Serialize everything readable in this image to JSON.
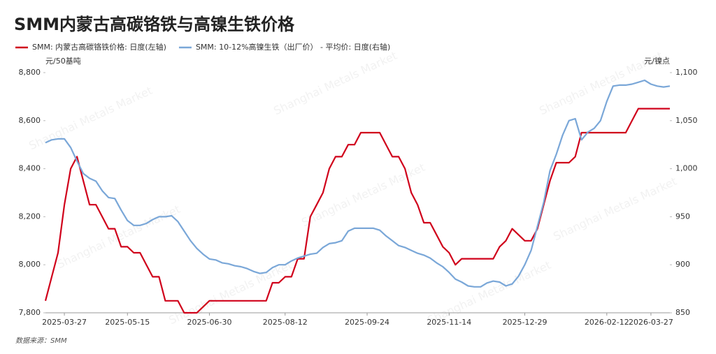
{
  "chart_data": {
    "type": "line",
    "title": "SMM内蒙古高碳铬铁与高镍生铁价格",
    "y_label": "元/50基吨",
    "y2_label": "元/镍点",
    "source": "数据来源：SMM",
    "watermark": "Shanghai Metals Market",
    "categories": [
      null,
      null,
      null,
      "2025-03-27",
      null,
      null,
      null,
      null,
      null,
      null,
      null,
      null,
      null,
      "2025-05-15",
      null,
      null,
      null,
      null,
      null,
      null,
      null,
      null,
      null,
      null,
      null,
      null,
      "2025-06-30",
      null,
      null,
      null,
      null,
      null,
      null,
      null,
      null,
      null,
      null,
      null,
      "2025-08-12",
      null,
      null,
      null,
      null,
      null,
      null,
      null,
      null,
      null,
      null,
      null,
      null,
      "2025-09-24",
      null,
      null,
      null,
      null,
      null,
      null,
      null,
      null,
      null,
      null,
      null,
      null,
      "2025-11-14",
      null,
      null,
      null,
      null,
      null,
      null,
      null,
      null,
      null,
      null,
      null,
      "2025-12-29",
      null,
      null,
      null,
      null,
      null,
      null,
      null,
      null,
      null,
      null,
      null,
      null,
      "2026-02-12",
      null,
      null,
      null,
      null,
      null,
      null,
      "2026-03-27",
      null,
      null,
      null
    ],
    "series": [
      {
        "name": "SMM: 内蒙古高碳铬铁价格: 日度(左轴)",
        "color": "#d0021b",
        "axis": "y",
        "values": [
          7850,
          7950,
          8050,
          8250,
          8400,
          8450,
          8350,
          8250,
          8250,
          8200,
          8150,
          8150,
          8075,
          8075,
          8050,
          8050,
          8000,
          7950,
          7950,
          7850,
          7850,
          7850,
          7800,
          7800,
          7800,
          7825,
          7850,
          7850,
          7850,
          7850,
          7850,
          7850,
          7850,
          7850,
          7850,
          7850,
          7925,
          7925,
          7950,
          7950,
          8025,
          8025,
          8200,
          8250,
          8300,
          8400,
          8450,
          8450,
          8500,
          8500,
          8550,
          8550,
          8550,
          8550,
          8500,
          8450,
          8450,
          8400,
          8300,
          8250,
          8175,
          8175,
          8125,
          8075,
          8050,
          8000,
          8025,
          8025,
          8025,
          8025,
          8025,
          8025,
          8075,
          8100,
          8150,
          8125,
          8100,
          8100,
          8150,
          8250,
          8350,
          8425,
          8425,
          8425,
          8450,
          8550,
          8550,
          8550,
          8550,
          8550,
          8550,
          8550,
          8550,
          8600,
          8650,
          8650,
          8650,
          8650,
          8650,
          8650
        ]
      },
      {
        "name": "SMM: 10-12%高镍生铁（出厂价） - 平均价: 日度(右轴)",
        "color": "#7aa7d8",
        "axis": "y2",
        "values": [
          1027,
          1030,
          1031,
          1031,
          1022,
          1008,
          995,
          990,
          987,
          977,
          970,
          969,
          957,
          946,
          941,
          941,
          943,
          947,
          950,
          950,
          951,
          945,
          935,
          925,
          917,
          911,
          906,
          905,
          902,
          901,
          899,
          898,
          896,
          893,
          891,
          892,
          897,
          900,
          900,
          904,
          907,
          909,
          911,
          912,
          918,
          922,
          923,
          925,
          935,
          938,
          938,
          938,
          938,
          936,
          930,
          925,
          920,
          918,
          915,
          912,
          910,
          907,
          902,
          898,
          892,
          885,
          882,
          878,
          877,
          877,
          881,
          883,
          882,
          878,
          880,
          888,
          900,
          915,
          940,
          965,
          998,
          1015,
          1035,
          1050,
          1052,
          1030,
          1038,
          1042,
          1050,
          1070,
          1086,
          1087,
          1087,
          1088,
          1090,
          1092,
          1088,
          1086,
          1085,
          1086
        ]
      }
    ],
    "ylim": [
      7800,
      8800
    ],
    "yticks": [
      {
        "value": 7800,
        "label": "7,800"
      },
      {
        "value": 8000,
        "label": "8,000"
      },
      {
        "value": 8200,
        "label": "8,200"
      },
      {
        "value": 8400,
        "label": "8,400"
      },
      {
        "value": 8600,
        "label": "8,600"
      },
      {
        "value": 8800,
        "label": "8,800"
      }
    ],
    "y2lim": [
      850,
      1100
    ],
    "y2ticks": [
      850,
      900,
      950,
      {
        "value": 1000,
        "label": "1,000"
      },
      {
        "value": 1050,
        "label": "1,050"
      },
      {
        "value": 1100,
        "label": "1,100"
      }
    ],
    "grid": false
  }
}
